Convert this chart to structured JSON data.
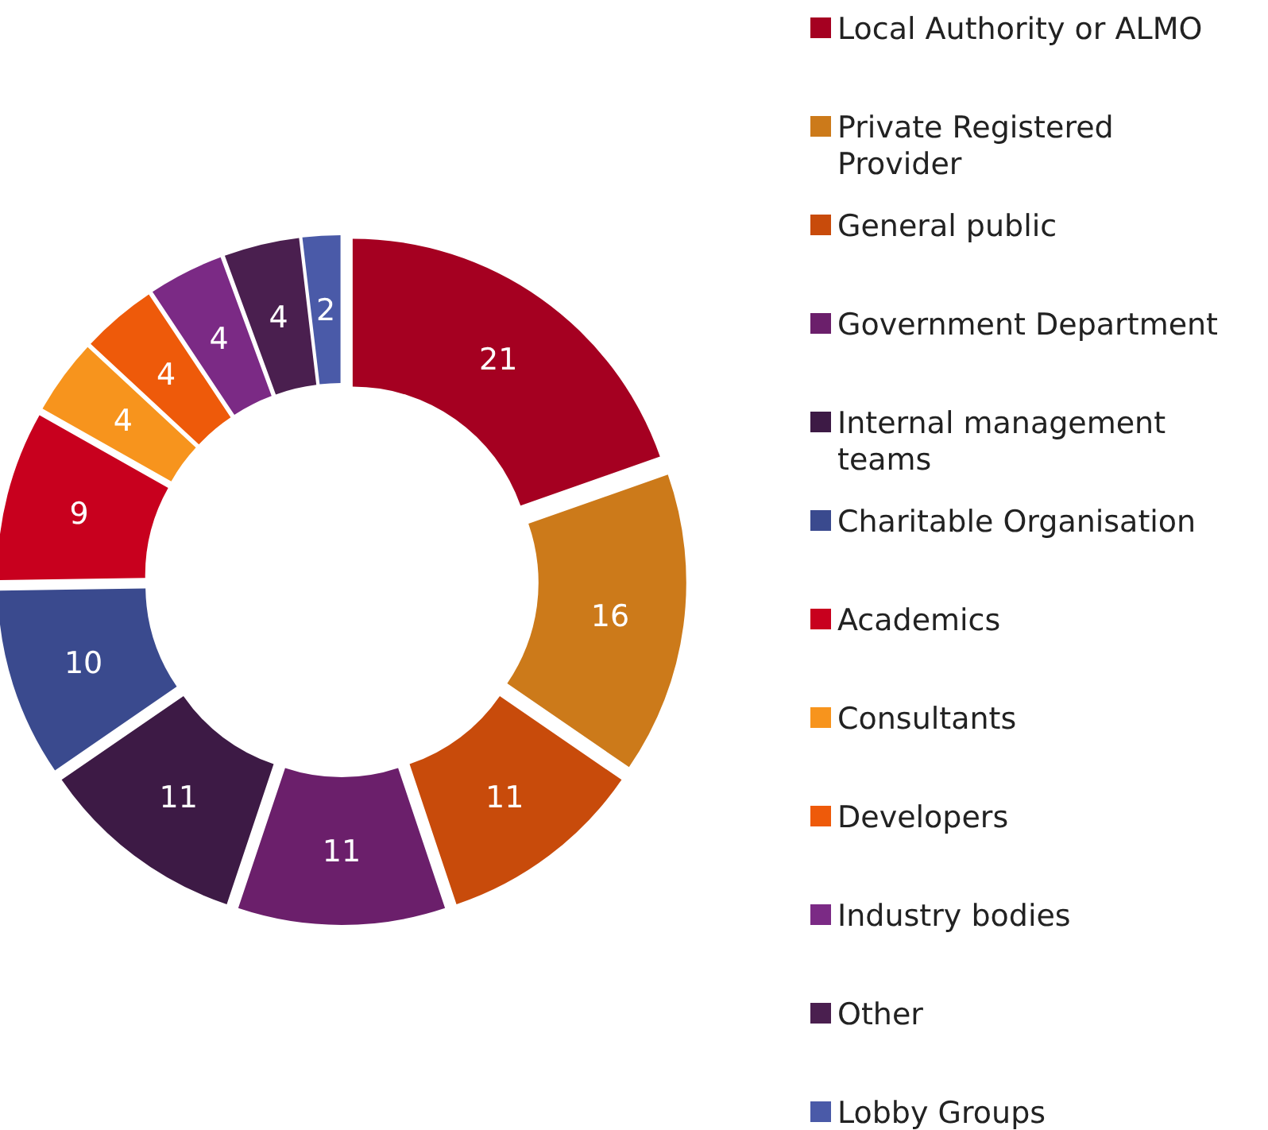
{
  "chart_data": {
    "type": "donut",
    "categories": [
      "Local Authority or ALMO",
      "Private Registered Provider",
      "General public",
      "Government Department",
      "Internal management teams",
      "Charitable Organisation",
      "Academics",
      "Consultants",
      "Developers",
      "Industry bodies",
      "Other",
      "Lobby Groups"
    ],
    "values": [
      21,
      16,
      11,
      11,
      11,
      10,
      9,
      4,
      4,
      4,
      4,
      2
    ],
    "colors": [
      "#a50021",
      "#cc7a1a",
      "#c84b0b",
      "#6b1f6b",
      "#3d1a45",
      "#3a4a8e",
      "#c8001e",
      "#f7941d",
      "#ee5a0a",
      "#7b2a85",
      "#4a1f4f",
      "#4a5aa8"
    ],
    "data_labels": true,
    "legend": "right"
  }
}
